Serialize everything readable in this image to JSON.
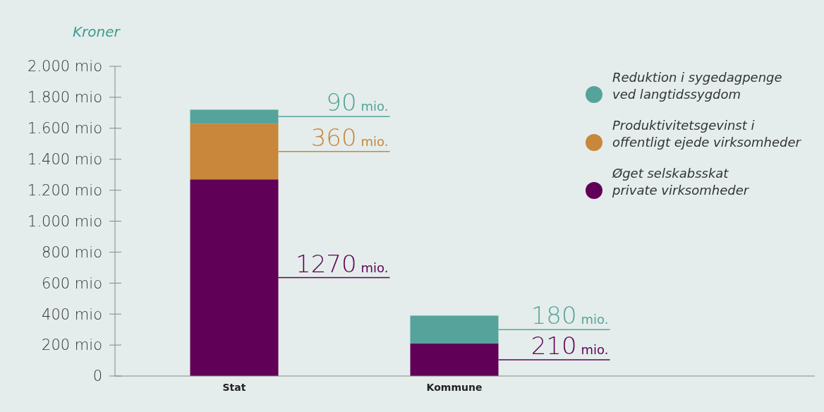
{
  "chart_data": {
    "type": "bar",
    "stacked": true,
    "ylabel": "Kroner",
    "categories": [
      "Stat",
      "Kommune"
    ],
    "series": [
      {
        "name": "Øget selskabsskat\nprivate virksomheder",
        "color": "#600057",
        "values": [
          1270,
          210
        ],
        "value_labels": [
          "1270 mio.",
          "210 mio."
        ]
      },
      {
        "name": "Produktivitetsgevinst i\noffentligt ejede virksomheder",
        "color": "#c8873a",
        "values": [
          360,
          null
        ],
        "value_labels": [
          "360 mio.",
          null
        ]
      },
      {
        "name": "Reduktion i sygedagpenge\nved langtidssygdom",
        "color": "#56a39b",
        "values": [
          90,
          180
        ],
        "value_labels": [
          "90 mio.",
          "180 mio."
        ]
      }
    ],
    "ylim": [
      0,
      2000
    ],
    "yticks": [
      0,
      {
        "value": 200,
        "label": "200 mio"
      },
      {
        "value": 400,
        "label": "400 mio"
      },
      {
        "value": 600,
        "label": "600 mio"
      },
      {
        "value": 800,
        "label": "800 mio"
      },
      {
        "value": 1000,
        "label": "1.000 mio"
      },
      {
        "value": 1200,
        "label": "1.200 mio"
      },
      {
        "value": 1400,
        "label": "1.400 mio"
      },
      {
        "value": 1600,
        "label": "1.600 mio"
      },
      {
        "value": 1800,
        "label": "1.800 mio"
      },
      {
        "value": 2000,
        "label": "2.000 mio"
      }
    ],
    "legend": "top right",
    "marker": "circle"
  }
}
